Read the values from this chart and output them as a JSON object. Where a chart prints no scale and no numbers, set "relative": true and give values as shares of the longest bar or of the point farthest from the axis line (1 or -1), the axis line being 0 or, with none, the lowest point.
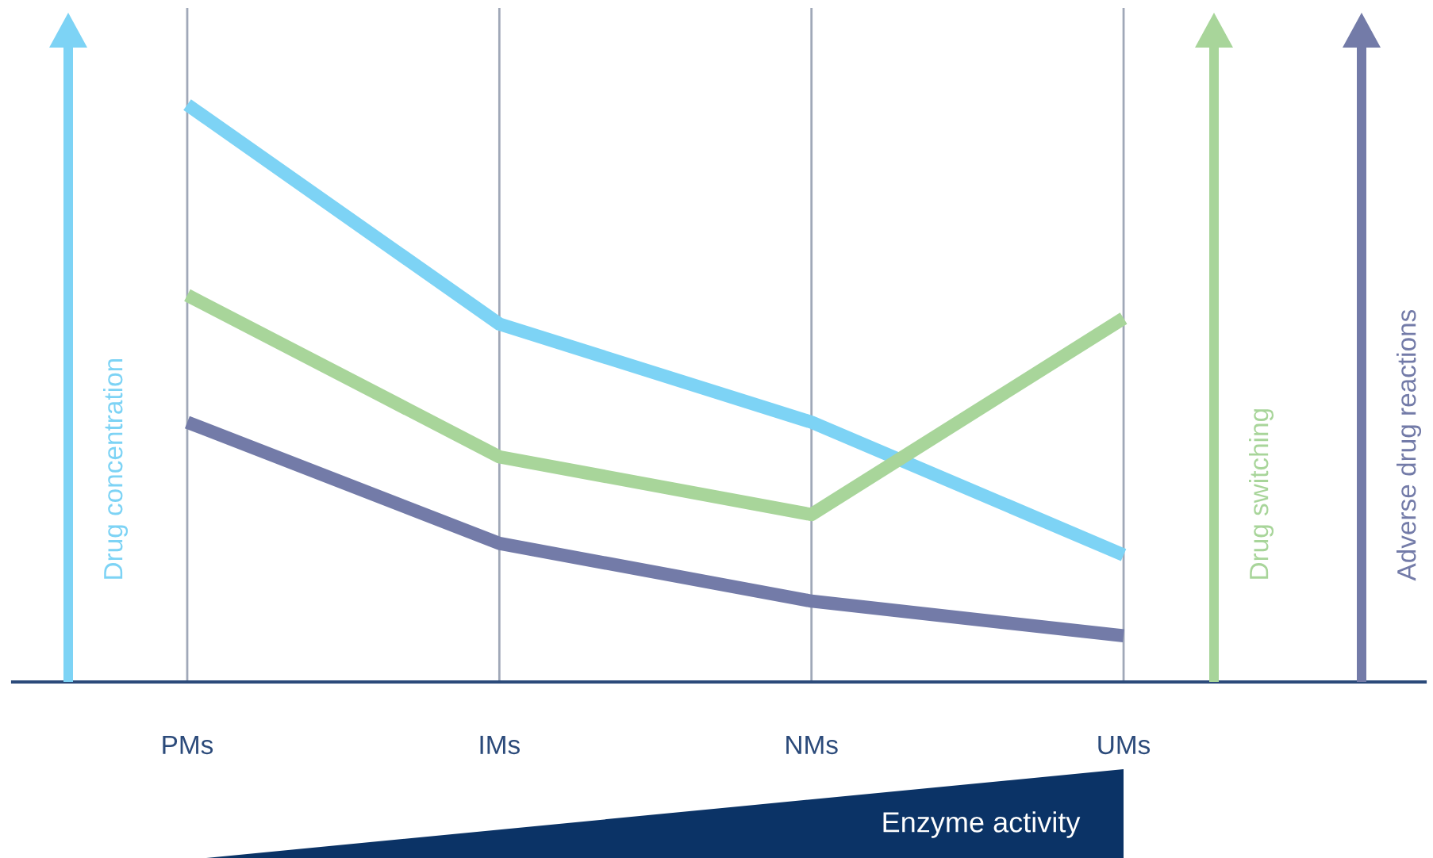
{
  "chart_data": {
    "type": "line",
    "relative": true,
    "categories": [
      "PMs",
      "IMs",
      "NMs",
      "UMs"
    ],
    "series": [
      {
        "name": "Drug concentration",
        "color": "#7dd3f5",
        "values": [
          1,
          0.62,
          0.45,
          0.22
        ]
      },
      {
        "name": "Drug switching",
        "color": "#a8d59a",
        "values": [
          0.67,
          0.39,
          0.29,
          0.63
        ]
      },
      {
        "name": "Adverse drug reactions",
        "color": "#737ba8",
        "values": [
          0.45,
          0.24,
          0.14,
          0.08
        ]
      }
    ],
    "xlabel": "Enzyme activity",
    "grid": "x",
    "legend": false,
    "marker": "none",
    "line_style": "solid"
  }
}
